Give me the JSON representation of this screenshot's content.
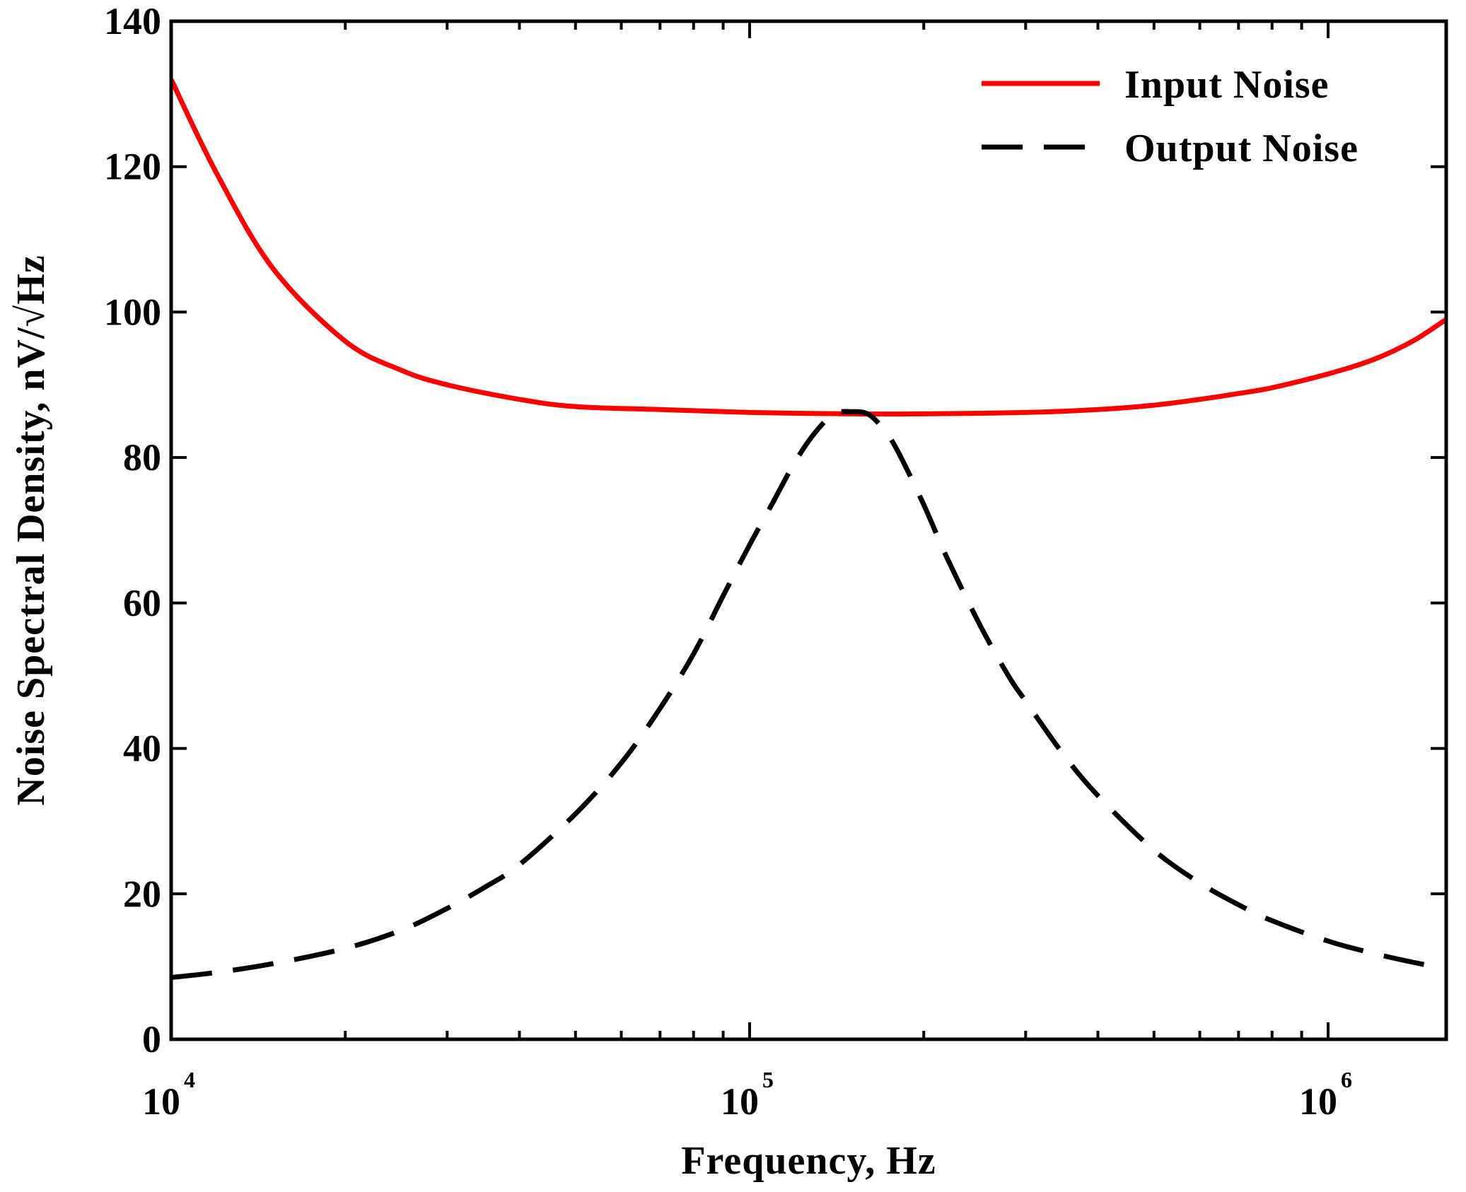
{
  "chart_data": {
    "type": "line",
    "title": "",
    "xlabel": "Frequency, Hz",
    "ylabel": "Noise Spectral Density, nV/√Hz",
    "xscale": "log",
    "xlim": [
      10000,
      1600000
    ],
    "ylim": [
      0,
      140
    ],
    "grid": false,
    "legend_position": "top-right",
    "y_ticks": [
      0,
      20,
      40,
      60,
      80,
      100,
      120,
      140
    ],
    "y_tick_labels": [
      "0",
      "20",
      "40",
      "60",
      "80",
      "100",
      "120",
      "140"
    ],
    "x_major_ticks": [
      {
        "value": 10000,
        "base": "10",
        "exponent": "4"
      },
      {
        "value": 100000,
        "base": "10",
        "exponent": "5"
      },
      {
        "value": 1000000,
        "base": "10",
        "exponent": "6"
      }
    ],
    "colors": {
      "input": "#ff0000",
      "output": "#000000",
      "axis": "#000000"
    },
    "series": [
      {
        "name": "Input Noise",
        "style": "solid",
        "color": "#ff0000",
        "x": [
          10000,
          12000,
          15000,
          20000,
          25000,
          30000,
          40000,
          50000,
          70000,
          100000,
          150000,
          200000,
          300000,
          400000,
          500000,
          600000,
          700000,
          800000,
          1000000,
          1200000,
          1400000,
          1600000
        ],
        "y": [
          132,
          119,
          106,
          96,
          92,
          90,
          88,
          87,
          86.6,
          86.2,
          86,
          86,
          86.2,
          86.6,
          87.2,
          88,
          88.8,
          89.6,
          91.5,
          93.5,
          96,
          99
        ]
      },
      {
        "name": "Output Noise",
        "style": "dashed",
        "color": "#000000",
        "x": [
          10000,
          12000,
          15000,
          20000,
          25000,
          30000,
          35000,
          40000,
          50000,
          60000,
          70000,
          80000,
          90000,
          100000,
          110000,
          120000,
          130000,
          140000,
          150000,
          160000,
          170000,
          180000,
          200000,
          220000,
          250000,
          280000,
          300000,
          350000,
          400000,
          500000,
          600000,
          700000,
          800000,
          1000000,
          1200000,
          1400000,
          1600000
        ],
        "y": [
          8.5,
          9.2,
          10.4,
          12.5,
          15,
          18,
          21,
          24,
          31,
          38,
          45.5,
          53,
          61,
          68,
          74,
          79.5,
          83.5,
          86,
          86.3,
          86,
          84,
          81,
          73.5,
          66,
          57,
          50,
          46.5,
          39,
          33.5,
          26,
          21.5,
          18.5,
          16.3,
          13.5,
          11.8,
          10.6,
          9.7
        ]
      }
    ]
  }
}
